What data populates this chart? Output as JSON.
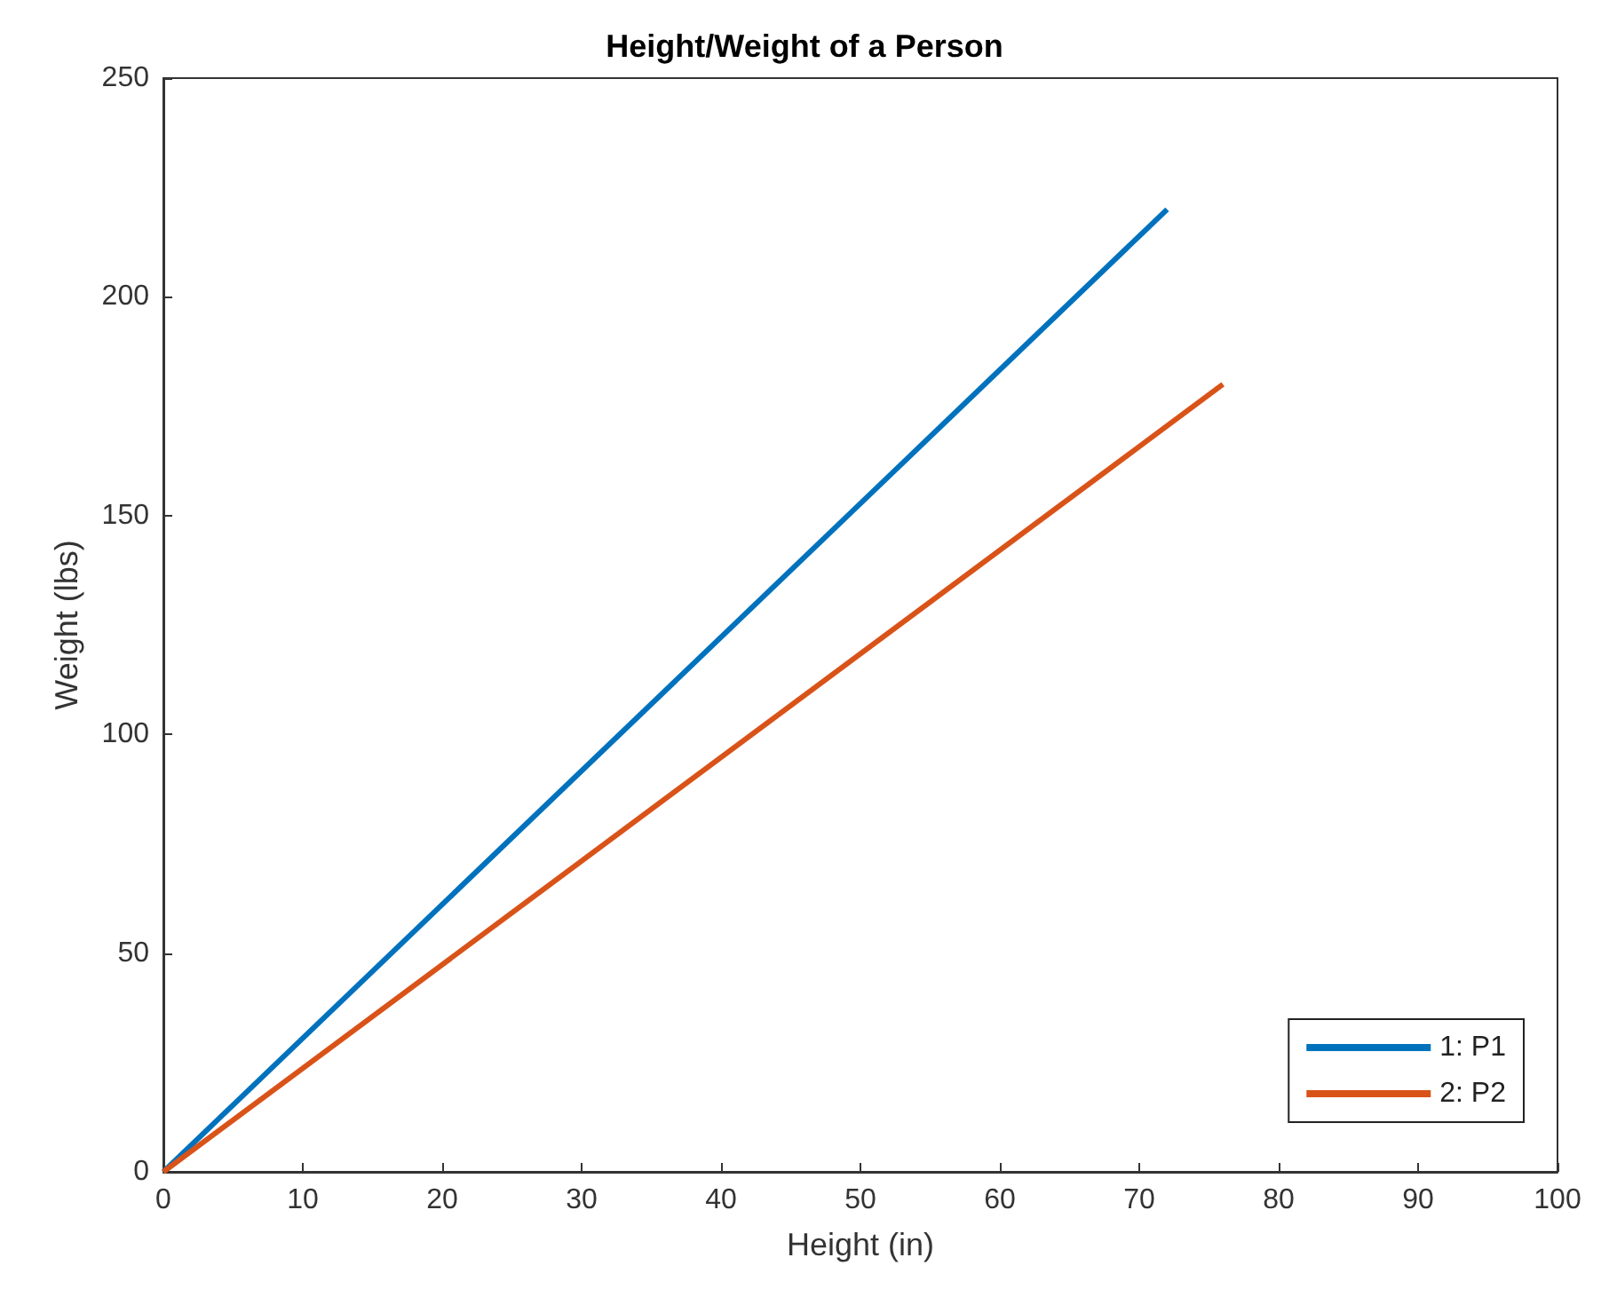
{
  "chart_data": {
    "type": "line",
    "title": "Height/Weight of a Person",
    "xlabel": "Height (in)",
    "ylabel": "Weight (lbs)",
    "series": [
      {
        "name": "1: P1",
        "color": "#0072bd",
        "x": [
          0,
          72
        ],
        "values": [
          0,
          220
        ]
      },
      {
        "name": "2: P2",
        "color": "#d95319",
        "x": [
          0,
          76
        ],
        "values": [
          0,
          180
        ]
      }
    ],
    "xlim": [
      0,
      100
    ],
    "xticks": [
      0,
      10,
      20,
      30,
      40,
      50,
      60,
      70,
      80,
      90,
      100
    ],
    "ylim": [
      0,
      250
    ],
    "yticks": [
      0,
      50,
      100,
      150,
      200,
      250
    ],
    "grid": false,
    "legend": "bottom right",
    "marker": "none",
    "line_style": "solid"
  }
}
